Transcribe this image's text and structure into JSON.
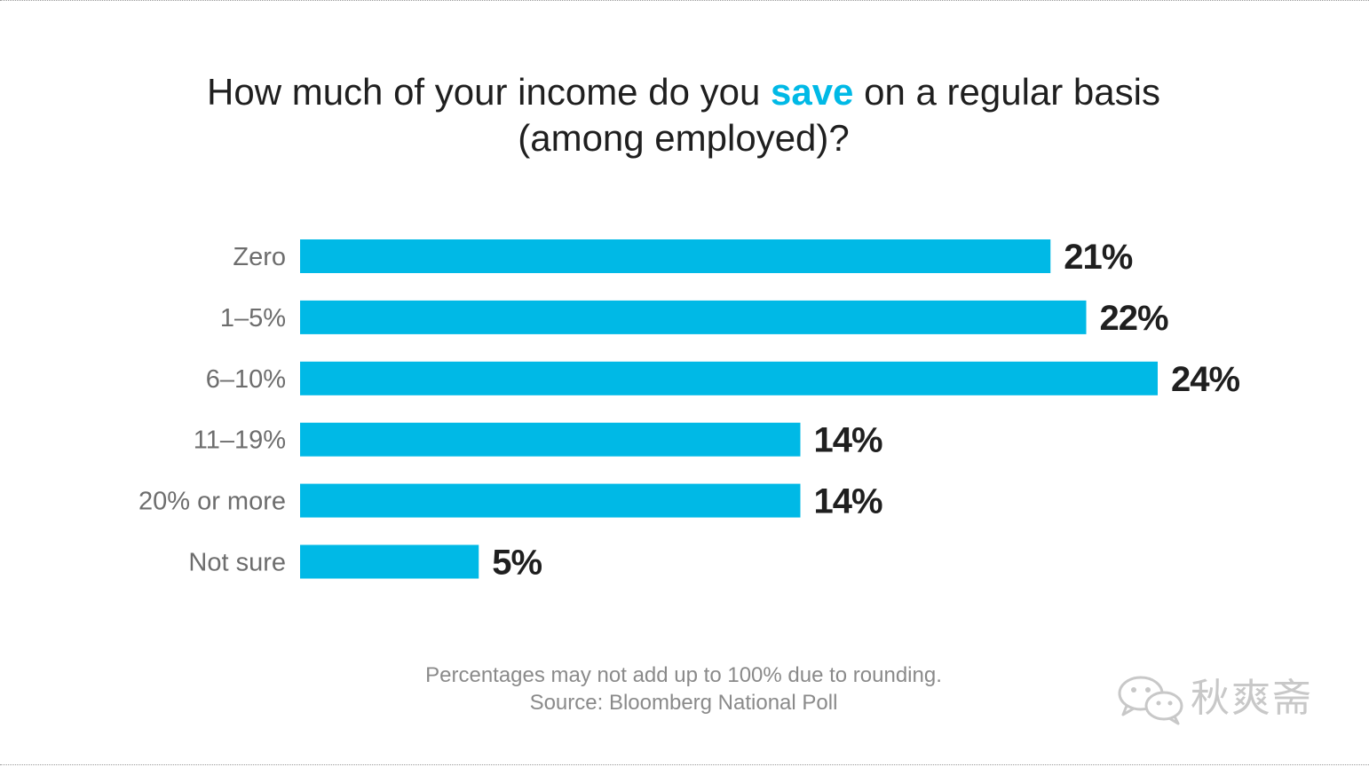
{
  "title": {
    "before": "How much of your income do you ",
    "highlight": "save",
    "after": " on a regular basis",
    "line2": "(among employed)?"
  },
  "colors": {
    "bar": "#00b9e6",
    "highlight": "#00b9e6",
    "category_label": "#6d6d6d",
    "value_label": "#1f1f1f"
  },
  "chart_data": {
    "type": "bar",
    "orientation": "horizontal",
    "categories": [
      "Zero",
      "1–5%",
      "6–10%",
      "11–19%",
      "20% or more",
      "Not sure"
    ],
    "values": [
      21,
      22,
      24,
      14,
      14,
      5
    ],
    "value_labels": [
      "21%",
      "22%",
      "24%",
      "14%",
      "14%",
      "5%"
    ],
    "xlim": [
      0,
      24
    ],
    "grid": false,
    "legend": "none"
  },
  "footnote": {
    "line1": "Percentages may not add up to 100% due to rounding.",
    "line2": "Source: Bloomberg National Poll"
  },
  "watermark": {
    "icon": "wechat-icon",
    "text": "秋爽斋"
  }
}
